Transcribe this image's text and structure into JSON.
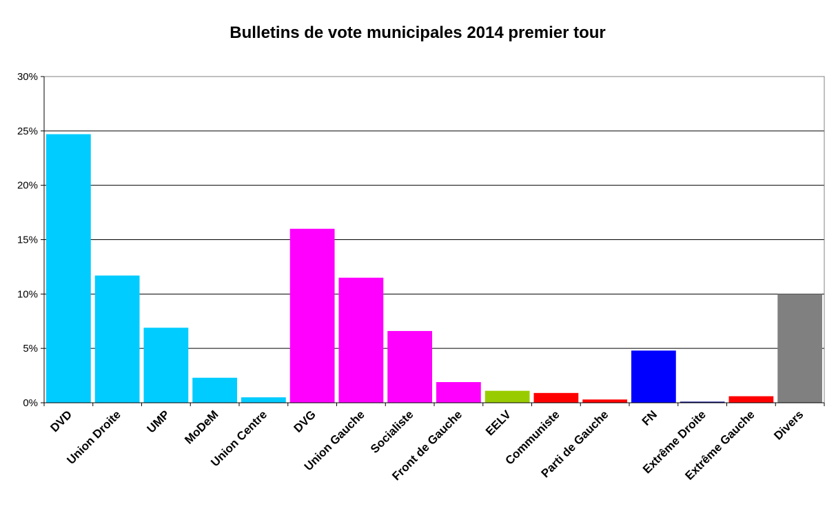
{
  "chart_data": {
    "type": "bar",
    "title": "Bulletins de vote municipales 2014 premier tour",
    "xlabel": "",
    "ylabel": "",
    "ylim": [
      0,
      30
    ],
    "yticks": [
      "0%",
      "5%",
      "10%",
      "15%",
      "20%",
      "25%",
      "30%"
    ],
    "categories": [
      "DVD",
      "Union Droite",
      "UMP",
      "MoDeM",
      "Union Centre",
      "DVG",
      "Union Gauche",
      "Socialiste",
      "Front de Gauche",
      "EELV",
      "Communiste",
      "Parti de Gauche",
      "FN",
      "Extrême Droite",
      "Extrême Gauche",
      "Divers"
    ],
    "values": [
      24.7,
      11.7,
      6.9,
      2.3,
      0.5,
      16.0,
      11.5,
      6.6,
      1.9,
      1.1,
      0.9,
      0.3,
      4.8,
      0.1,
      0.6,
      10.0
    ],
    "colors": [
      "#00ccff",
      "#00ccff",
      "#00ccff",
      "#00ccff",
      "#00ccff",
      "#ff00ff",
      "#ff00ff",
      "#ff00ff",
      "#ff00ff",
      "#99cc00",
      "#ff0000",
      "#ff0000",
      "#0000ff",
      "#000080",
      "#ff0000",
      "#808080"
    ],
    "grid": true,
    "legend": "none"
  }
}
